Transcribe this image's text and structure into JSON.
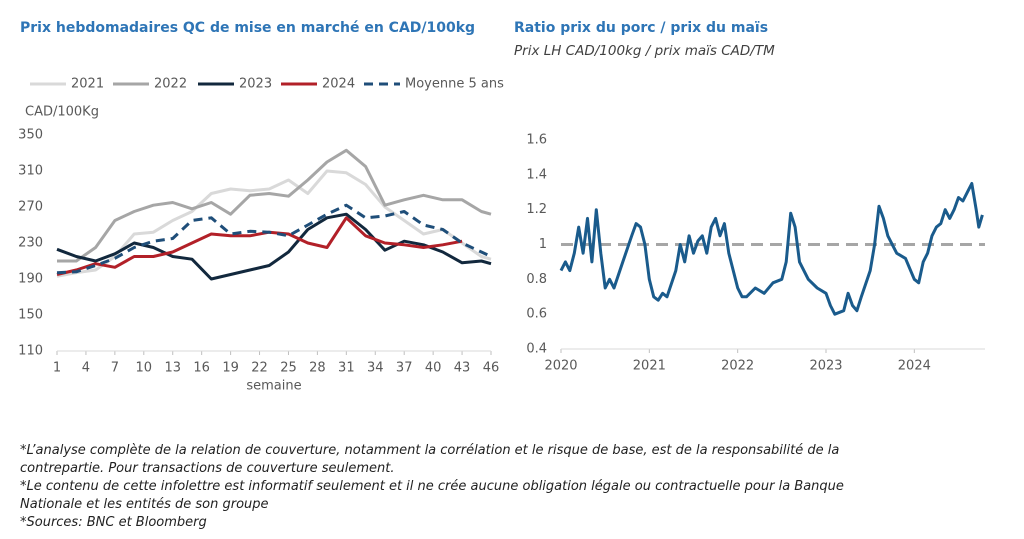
{
  "chart_data": [
    {
      "type": "line",
      "title": "Prix hebdomadaires QC de mise en marché en CAD/100kg",
      "y_label": "CAD/100Kg",
      "x_label": "semaine",
      "x": [
        1,
        3,
        5,
        7,
        9,
        11,
        13,
        15,
        17,
        19,
        21,
        23,
        25,
        27,
        29,
        31,
        33,
        35,
        37,
        39,
        41,
        43,
        45,
        46
      ],
      "xlim": [
        1,
        46
      ],
      "xticks": [
        1,
        4,
        7,
        10,
        13,
        16,
        19,
        22,
        25,
        28,
        31,
        34,
        37,
        40,
        43,
        46
      ],
      "ylim": [
        110,
        350
      ],
      "yticks": [
        110,
        150,
        190,
        230,
        270,
        310,
        350
      ],
      "grid": false,
      "legend": "top",
      "series": [
        {
          "name": "2021",
          "color": "#d9d9d9",
          "dash": false,
          "values": [
            193,
            197,
            200,
            215,
            240,
            242,
            255,
            265,
            285,
            290,
            288,
            290,
            300,
            285,
            310,
            308,
            295,
            270,
            255,
            240,
            245,
            230,
            215,
            212
          ]
        },
        {
          "name": "2022",
          "color": "#a6a6a6",
          "dash": false,
          "values": [
            210,
            210,
            225,
            255,
            265,
            272,
            275,
            268,
            275,
            262,
            283,
            285,
            282,
            300,
            320,
            333,
            315,
            272,
            278,
            283,
            278,
            278,
            265,
            262
          ]
        },
        {
          "name": "2023",
          "color": "#12283d",
          "dash": false,
          "values": [
            223,
            215,
            210,
            218,
            230,
            225,
            215,
            212,
            190,
            195,
            200,
            205,
            220,
            245,
            258,
            262,
            245,
            222,
            232,
            228,
            220,
            208,
            210,
            207
          ]
        },
        {
          "name": "2024",
          "color": "#b22028",
          "dash": false,
          "values": [
            195,
            200,
            207,
            203,
            215,
            215,
            220,
            230,
            240,
            238,
            238,
            242,
            240,
            230,
            225,
            258,
            238,
            230,
            228,
            225,
            228,
            232,
            null,
            null
          ]
        },
        {
          "name": "Moyenne 5 ans",
          "color": "#1f4e79",
          "dash": true,
          "values": [
            197,
            198,
            205,
            213,
            225,
            232,
            235,
            255,
            258,
            240,
            243,
            242,
            238,
            250,
            262,
            272,
            258,
            260,
            265,
            250,
            245,
            230,
            220,
            215
          ]
        }
      ]
    },
    {
      "type": "line",
      "title": "Ratio prix du porc / prix du maïs",
      "subtitle": "Prix LH CAD/100kg / prix maïs CAD/TM",
      "x": [
        2020.0,
        2020.05,
        2020.1,
        2020.15,
        2020.2,
        2020.25,
        2020.3,
        2020.35,
        2020.4,
        2020.45,
        2020.5,
        2020.55,
        2020.6,
        2020.7,
        2020.8,
        2020.85,
        2020.9,
        2020.95,
        2021.0,
        2021.05,
        2021.1,
        2021.15,
        2021.2,
        2021.3,
        2021.35,
        2021.4,
        2021.45,
        2021.5,
        2021.55,
        2021.6,
        2021.65,
        2021.7,
        2021.75,
        2021.8,
        2021.85,
        2021.9,
        2022.0,
        2022.05,
        2022.1,
        2022.2,
        2022.3,
        2022.4,
        2022.5,
        2022.55,
        2022.6,
        2022.65,
        2022.7,
        2022.8,
        2022.9,
        2023.0,
        2023.05,
        2023.1,
        2023.2,
        2023.25,
        2023.3,
        2023.35,
        2023.4,
        2023.5,
        2023.55,
        2023.6,
        2023.65,
        2023.7,
        2023.8,
        2023.9,
        2024.0,
        2024.05,
        2024.1,
        2024.15,
        2024.2,
        2024.25,
        2024.3,
        2024.35,
        2024.4,
        2024.45,
        2024.5,
        2024.55,
        2024.6,
        2024.65,
        2024.7,
        2024.73,
        2024.77
      ],
      "values": [
        0.85,
        0.9,
        0.85,
        0.95,
        1.1,
        0.95,
        1.15,
        0.9,
        1.2,
        0.95,
        0.75,
        0.8,
        0.75,
        0.9,
        1.05,
        1.12,
        1.1,
        1.0,
        0.8,
        0.7,
        0.68,
        0.72,
        0.7,
        0.85,
        1.0,
        0.9,
        1.05,
        0.95,
        1.02,
        1.05,
        0.95,
        1.1,
        1.15,
        1.05,
        1.12,
        0.95,
        0.75,
        0.7,
        0.7,
        0.75,
        0.72,
        0.78,
        0.8,
        0.9,
        1.18,
        1.1,
        0.9,
        0.8,
        0.75,
        0.72,
        0.65,
        0.6,
        0.62,
        0.72,
        0.65,
        0.62,
        0.7,
        0.85,
        1.0,
        1.22,
        1.15,
        1.05,
        0.95,
        0.92,
        0.8,
        0.78,
        0.9,
        0.95,
        1.05,
        1.1,
        1.12,
        1.2,
        1.15,
        1.2,
        1.27,
        1.25,
        1.3,
        1.35,
        1.2,
        1.1,
        1.17
      ],
      "color": "#1a5b8c",
      "reference_line": 1,
      "reference_color": "#a6a6a6",
      "xlim": [
        2020,
        2024.8
      ],
      "xticks": [
        2020,
        2021,
        2022,
        2023,
        2024
      ],
      "ylim": [
        0.4,
        1.6
      ],
      "yticks": [
        0.4,
        0.6,
        0.8,
        1,
        1.2,
        1.4,
        1.6
      ],
      "grid": false
    }
  ],
  "notes": [
    "*L’analyse complète de la relation de couverture, notamment la corrélation et le risque de base, est de la responsabilité de la contrepartie. Pour transactions de couverture seulement.",
    "*Le contenu de cette infolettre est informatif seulement et il ne crée aucune obligation légale ou contractuelle pour la Banque Nationale et les entités de son groupe",
    "*Sources: BNC et Bloomberg"
  ]
}
